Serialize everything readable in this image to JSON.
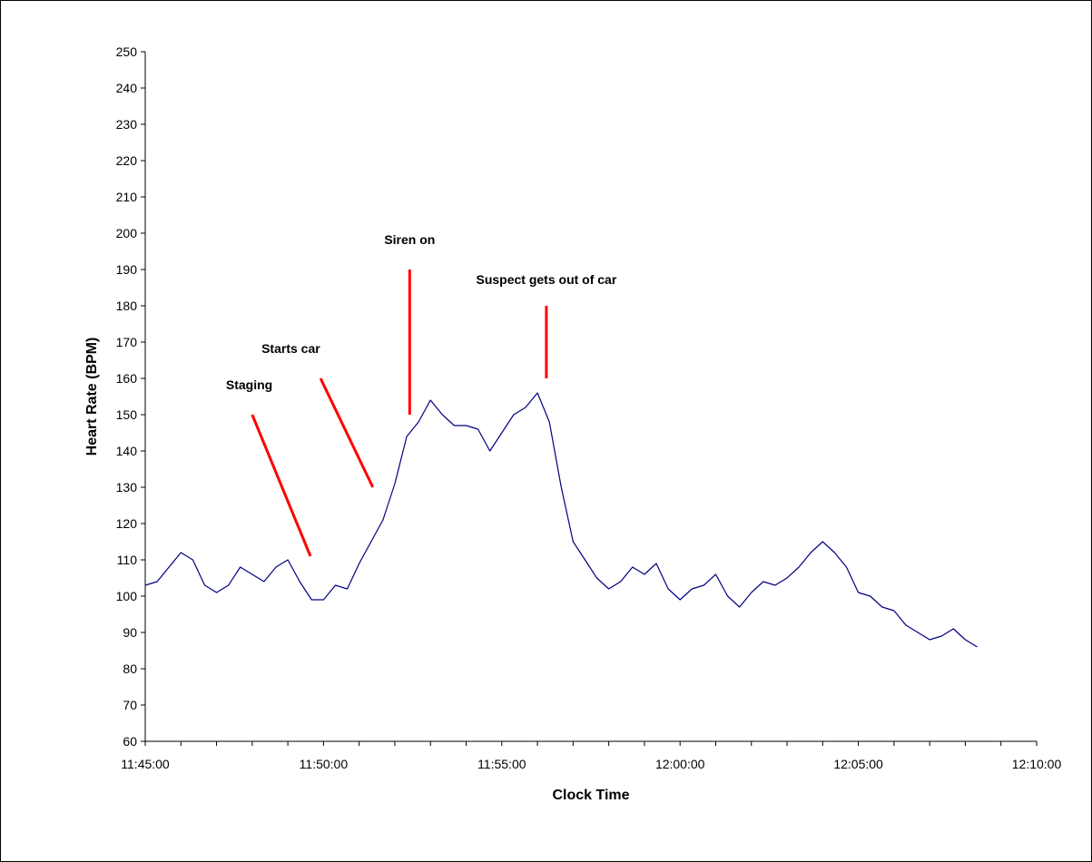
{
  "chart_data": {
    "type": "line",
    "xlabel": "Clock Time",
    "ylabel": "Heart Rate (BPM)",
    "ylim": [
      60,
      250
    ],
    "yticks": [
      60,
      70,
      80,
      90,
      100,
      110,
      120,
      130,
      140,
      150,
      160,
      170,
      180,
      190,
      200,
      210,
      220,
      230,
      240,
      250
    ],
    "xlim": [
      "11:45:00",
      "12:10:00"
    ],
    "xticks": [
      "11:45:00",
      "11:50:00",
      "11:55:00",
      "12:00:00",
      "12:05:00",
      "12:10:00"
    ],
    "xminor_step_seconds": 60,
    "grid": false,
    "legend": "none",
    "line_color": "#000080",
    "annotation_color": "#ff0000",
    "series": [
      {
        "x": [
          "11:45:00",
          "11:45:20",
          "11:45:40",
          "11:46:00",
          "11:46:20",
          "11:46:40",
          "11:47:00",
          "11:47:20",
          "11:47:40",
          "11:48:00",
          "11:48:20",
          "11:48:40",
          "11:49:00",
          "11:49:20",
          "11:49:40",
          "11:50:00",
          "11:50:20",
          "11:50:40",
          "11:51:00",
          "11:51:20",
          "11:51:40",
          "11:52:00",
          "11:52:20",
          "11:52:40",
          "11:53:00",
          "11:53:20",
          "11:53:40",
          "11:54:00",
          "11:54:20",
          "11:54:40",
          "11:55:00",
          "11:55:20",
          "11:55:40",
          "11:56:00",
          "11:56:20",
          "11:56:40",
          "11:57:00",
          "11:57:20",
          "11:57:40",
          "11:58:00",
          "11:58:20",
          "11:58:40",
          "11:59:00",
          "11:59:20",
          "11:59:40",
          "12:00:00",
          "12:00:20",
          "12:00:40",
          "12:01:00",
          "12:01:20",
          "12:01:40",
          "12:02:00",
          "12:02:20",
          "12:02:40",
          "12:03:00",
          "12:03:20",
          "12:03:40",
          "12:04:00",
          "12:04:20",
          "12:04:40",
          "12:05:00",
          "12:05:20",
          "12:05:40",
          "12:06:00",
          "12:06:20",
          "12:06:40",
          "12:07:00",
          "12:07:20",
          "12:07:40",
          "12:08:00",
          "12:08:20"
        ],
        "values": [
          103,
          104,
          108,
          112,
          110,
          103,
          101,
          103,
          108,
          106,
          104,
          108,
          110,
          104,
          99,
          99,
          103,
          102,
          109,
          115,
          121,
          131,
          144,
          148,
          154,
          150,
          147,
          147,
          146,
          140,
          145,
          150,
          152,
          156,
          148,
          130,
          115,
          110,
          105,
          102,
          104,
          108,
          106,
          109,
          102,
          99,
          102,
          103,
          106,
          100,
          97,
          101,
          104,
          103,
          105,
          108,
          112,
          115,
          112,
          108,
          101,
          100,
          97,
          96,
          92,
          90,
          88,
          89,
          91,
          88,
          86
        ]
      }
    ],
    "annotations": [
      {
        "text": "Staging",
        "label_x": "11:47:55",
        "label_y": 157,
        "x1": "11:48:00",
        "y1": 150,
        "x2": "11:49:38",
        "y2": 111
      },
      {
        "text": "Starts car",
        "label_x": "11:49:05",
        "label_y": 167,
        "x1": "11:49:55",
        "y1": 160,
        "x2": "11:51:23",
        "y2": 130
      },
      {
        "text": "Siren on",
        "label_x": "11:52:25",
        "label_y": 197,
        "x1": "11:52:25",
        "y1": 190,
        "x2": "11:52:25",
        "y2": 150
      },
      {
        "text": "Suspect gets out of car",
        "label_x": "11:56:15",
        "label_y": 186,
        "x1": "11:56:15",
        "y1": 180,
        "x2": "11:56:15",
        "y2": 160
      }
    ]
  }
}
